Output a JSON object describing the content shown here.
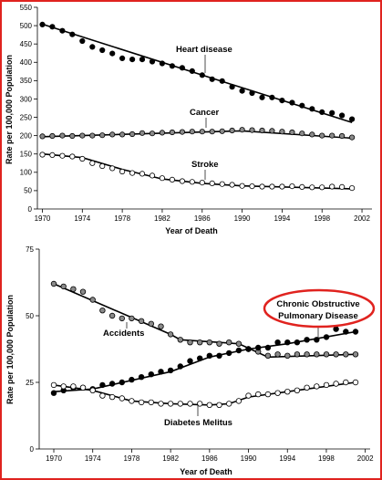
{
  "chart_data": [
    {
      "type": "scatter",
      "xlabel": "Year of Death",
      "ylabel": "Rate per 100,000 Population",
      "xlim": [
        1969.5,
        2003
      ],
      "ylim": [
        0,
        550
      ],
      "xticks": [
        1970,
        1974,
        1978,
        1982,
        1986,
        1990,
        1994,
        1998,
        2002
      ],
      "yticks": [
        0,
        50,
        100,
        150,
        200,
        250,
        300,
        350,
        400,
        450,
        500,
        550
      ],
      "grid": false,
      "legend": "none",
      "series": [
        {
          "name": "Heart disease",
          "marker": "filled-black",
          "points": [
            [
              1970,
              503
            ],
            [
              1971,
              497
            ],
            [
              1972,
              486
            ],
            [
              1973,
              476
            ],
            [
              1974,
              458
            ],
            [
              1975,
              442
            ],
            [
              1976,
              433
            ],
            [
              1977,
              424
            ],
            [
              1978,
              411
            ],
            [
              1979,
              408
            ],
            [
              1980,
              408
            ],
            [
              1981,
              402
            ],
            [
              1982,
              397
            ],
            [
              1983,
              390
            ],
            [
              1984,
              385
            ],
            [
              1985,
              376
            ],
            [
              1986,
              365
            ],
            [
              1987,
              354
            ],
            [
              1988,
              349
            ],
            [
              1989,
              333
            ],
            [
              1990,
              322
            ],
            [
              1991,
              316
            ],
            [
              1992,
              304
            ],
            [
              1993,
              304
            ],
            [
              1994,
              296
            ],
            [
              1995,
              290
            ],
            [
              1996,
              282
            ],
            [
              1997,
              273
            ],
            [
              1998,
              264
            ],
            [
              1999,
              262
            ],
            [
              2000,
              255
            ],
            [
              2001,
              245
            ]
          ],
          "fit": [
            [
              1970,
              504
            ],
            [
              1986,
              365
            ],
            [
              2001,
              236
            ]
          ]
        },
        {
          "name": "Cancer",
          "marker": "filled-gray",
          "points": [
            [
              1970,
              198
            ],
            [
              1971,
              199
            ],
            [
              1972,
              200
            ],
            [
              1973,
              199
            ],
            [
              1974,
              200
            ],
            [
              1975,
              200
            ],
            [
              1976,
              201
            ],
            [
              1977,
              203
            ],
            [
              1978,
              203
            ],
            [
              1979,
              204
            ],
            [
              1980,
              207
            ],
            [
              1981,
              206
            ],
            [
              1982,
              208
            ],
            [
              1983,
              209
            ],
            [
              1984,
              210
            ],
            [
              1985,
              211
            ],
            [
              1986,
              211
            ],
            [
              1987,
              211
            ],
            [
              1988,
              212
            ],
            [
              1989,
              214
            ],
            [
              1990,
              216
            ],
            [
              1991,
              215
            ],
            [
              1992,
              214
            ],
            [
              1993,
              213
            ],
            [
              1994,
              211
            ],
            [
              1995,
              209
            ],
            [
              1996,
              206
            ],
            [
              1997,
              203
            ],
            [
              1998,
              200
            ],
            [
              1999,
              200
            ],
            [
              2000,
              199
            ],
            [
              2001,
              195
            ]
          ],
          "fit": [
            [
              1970,
              197
            ],
            [
              1990,
              213
            ],
            [
              2001,
              193
            ]
          ]
        },
        {
          "name": "Stroke",
          "marker": "open",
          "points": [
            [
              1970,
              148
            ],
            [
              1971,
              147
            ],
            [
              1972,
              145
            ],
            [
              1973,
              143
            ],
            [
              1974,
              137
            ],
            [
              1975,
              125
            ],
            [
              1976,
              117
            ],
            [
              1977,
              111
            ],
            [
              1978,
              102
            ],
            [
              1979,
              98
            ],
            [
              1980,
              96
            ],
            [
              1981,
              91
            ],
            [
              1982,
              84
            ],
            [
              1983,
              80
            ],
            [
              1984,
              76
            ],
            [
              1985,
              74
            ],
            [
              1986,
              72
            ],
            [
              1987,
              70
            ],
            [
              1988,
              68
            ],
            [
              1989,
              66
            ],
            [
              1990,
              63
            ],
            [
              1991,
              62
            ],
            [
              1992,
              61
            ],
            [
              1993,
              61
            ],
            [
              1994,
              61
            ],
            [
              1995,
              62
            ],
            [
              1996,
              60
            ],
            [
              1997,
              59
            ],
            [
              1998,
              59
            ],
            [
              1999,
              61
            ],
            [
              2000,
              60
            ],
            [
              2001,
              57
            ]
          ],
          "fit": [
            [
              1970,
              150
            ],
            [
              1974,
              140
            ],
            [
              1978,
              108
            ],
            [
              1982,
              82
            ],
            [
              1986,
              70
            ],
            [
              1990,
              63
            ],
            [
              2001,
              55
            ]
          ]
        }
      ],
      "annotations": [
        {
          "text": "Heart disease"
        },
        {
          "text": "Cancer"
        },
        {
          "text": "Stroke"
        }
      ]
    },
    {
      "type": "scatter",
      "xlabel": "Year of Death",
      "ylabel": "Rate per 100,000 Population",
      "xlim": [
        1968.5,
        2002.5
      ],
      "ylim": [
        0,
        75
      ],
      "xticks": [
        1970,
        1974,
        1978,
        1982,
        1986,
        1990,
        1994,
        1998,
        2002
      ],
      "yticks": [
        0,
        25,
        50,
        75
      ],
      "grid": false,
      "legend": "none",
      "series": [
        {
          "name": "Accidents",
          "marker": "filled-gray",
          "points": [
            [
              1970,
              62
            ],
            [
              1971,
              61
            ],
            [
              1972,
              60
            ],
            [
              1973,
              59
            ],
            [
              1974,
              56
            ],
            [
              1975,
              52
            ],
            [
              1976,
              50
            ],
            [
              1977,
              49
            ],
            [
              1978,
              49
            ],
            [
              1979,
              48
            ],
            [
              1980,
              47
            ],
            [
              1981,
              46
            ],
            [
              1982,
              43
            ],
            [
              1983,
              41
            ],
            [
              1984,
              40
            ],
            [
              1985,
              40
            ],
            [
              1986,
              40
            ],
            [
              1987,
              39.5
            ],
            [
              1988,
              40
            ],
            [
              1989,
              39.5
            ],
            [
              1990,
              37.5
            ],
            [
              1991,
              36.5
            ],
            [
              1992,
              35
            ],
            [
              1993,
              35.5
            ],
            [
              1994,
              35
            ],
            [
              1995,
              35.5
            ],
            [
              1996,
              35.5
            ],
            [
              1997,
              35.5
            ],
            [
              1998,
              35.5
            ],
            [
              1999,
              35.5
            ],
            [
              2000,
              35.5
            ],
            [
              2001,
              35.5
            ]
          ],
          "fit": [
            [
              1970,
              62
            ],
            [
              1982,
              43
            ],
            [
              1983,
              41
            ],
            [
              1989,
              39.5
            ],
            [
              1992,
              34.5
            ],
            [
              2001,
              35.5
            ]
          ]
        },
        {
          "name": "Chronic Obstructive Pulmonary Disease",
          "marker": "filled-black",
          "points": [
            [
              1970,
              21
            ],
            [
              1971,
              22
            ],
            [
              1972,
              23
            ],
            [
              1973,
              23
            ],
            [
              1974,
              22.5
            ],
            [
              1975,
              24
            ],
            [
              1976,
              24.5
            ],
            [
              1977,
              25
            ],
            [
              1978,
              26
            ],
            [
              1979,
              27
            ],
            [
              1980,
              28
            ],
            [
              1981,
              29
            ],
            [
              1982,
              29.5
            ],
            [
              1983,
              31
            ],
            [
              1984,
              33
            ],
            [
              1985,
              34
            ],
            [
              1986,
              35
            ],
            [
              1987,
              35
            ],
            [
              1988,
              36
            ],
            [
              1989,
              37
            ],
            [
              1990,
              37.5
            ],
            [
              1991,
              38
            ],
            [
              1992,
              38
            ],
            [
              1993,
              40
            ],
            [
              1994,
              40
            ],
            [
              1995,
              40
            ],
            [
              1996,
              41
            ],
            [
              1997,
              41
            ],
            [
              1998,
              42
            ],
            [
              1999,
              45
            ],
            [
              2000,
              44
            ],
            [
              2001,
              44
            ]
          ],
          "fit": [
            [
              1970,
              21.5
            ],
            [
              1974,
              22.5
            ],
            [
              1982,
              29
            ],
            [
              1986,
              34.5
            ],
            [
              1990,
              37.5
            ],
            [
              1994,
              39.5
            ],
            [
              2001,
              44
            ]
          ]
        },
        {
          "name": "Diabetes Melitus",
          "marker": "open",
          "points": [
            [
              1970,
              24
            ],
            [
              1971,
              23.5
            ],
            [
              1972,
              23.5
            ],
            [
              1973,
              23
            ],
            [
              1974,
              22
            ],
            [
              1975,
              20
            ],
            [
              1976,
              19.5
            ],
            [
              1977,
              19
            ],
            [
              1978,
              18
            ],
            [
              1979,
              17.5
            ],
            [
              1980,
              17.5
            ],
            [
              1981,
              17
            ],
            [
              1982,
              17
            ],
            [
              1983,
              17
            ],
            [
              1984,
              17
            ],
            [
              1985,
              17
            ],
            [
              1986,
              16.5
            ],
            [
              1987,
              16.5
            ],
            [
              1988,
              17
            ],
            [
              1989,
              18
            ],
            [
              1990,
              20
            ],
            [
              1991,
              20.5
            ],
            [
              1992,
              20.5
            ],
            [
              1993,
              21
            ],
            [
              1994,
              21.5
            ],
            [
              1995,
              22
            ],
            [
              1996,
              23
            ],
            [
              1997,
              23.5
            ],
            [
              1998,
              24
            ],
            [
              1999,
              24.5
            ],
            [
              2000,
              25
            ],
            [
              2001,
              25
            ]
          ],
          "fit": [
            [
              1970,
              24
            ],
            [
              1974,
              22
            ],
            [
              1978,
              18
            ],
            [
              1982,
              17
            ],
            [
              1986,
              16.5
            ],
            [
              1988,
              17
            ],
            [
              1990,
              19.5
            ],
            [
              1994,
              21.5
            ],
            [
              2001,
              25
            ]
          ]
        }
      ],
      "annotations": [
        {
          "text": "Accidents"
        },
        {
          "text": "Chronic Obstructive",
          "highlight_color": "#e0231f"
        },
        {
          "text": "Pulmonary Disease"
        },
        {
          "text": "Diabetes Melitus"
        }
      ]
    }
  ]
}
